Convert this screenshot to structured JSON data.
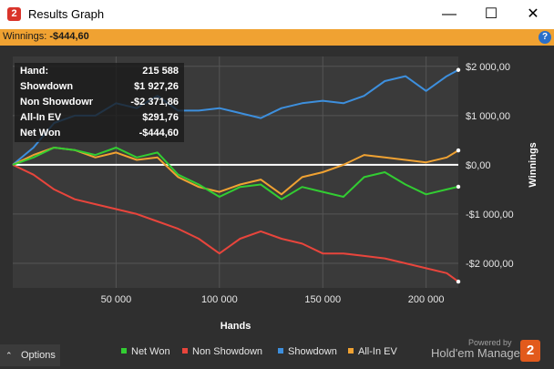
{
  "window": {
    "title": "Results Graph",
    "minimize_glyph": "—",
    "maximize_glyph": "☐",
    "close_glyph": "✕"
  },
  "winnings_bar": {
    "label": "Winnings:",
    "value": "-$444,60",
    "help_glyph": "?"
  },
  "info_box": [
    {
      "label": "Hand:",
      "value": "215 588"
    },
    {
      "label": "Showdown",
      "value": "$1 927,26"
    },
    {
      "label": "Non Showdown",
      "value": "-$2 371,86"
    },
    {
      "label": "All-In EV",
      "value": "$291,76"
    },
    {
      "label": "Net Won",
      "value": "-$444,60"
    }
  ],
  "options_button": {
    "chevron": "⌃",
    "label": "Options"
  },
  "powered_by": "Powered by",
  "brand": {
    "name": "Hold'em Manager",
    "logo_text": "2"
  },
  "colors": {
    "plot_background": "#3a3a3a",
    "grid": "#555555",
    "zero_line": "#ffffff",
    "net_won": "#32cd32",
    "non_showdown": "#e8453c",
    "showdown": "#3d8fdd",
    "all_in_ev": "#f0a232"
  },
  "chart_data": {
    "type": "line",
    "xlabel": "Hands",
    "ylabel": "Winnings",
    "xlim": [
      0,
      215588
    ],
    "ylim": [
      -2500,
      2200
    ],
    "x_ticks": [
      50000,
      100000,
      150000,
      200000
    ],
    "x_tick_labels": [
      "50 000",
      "100 000",
      "150 000",
      "200 000"
    ],
    "y_ticks": [
      2000,
      1000,
      0,
      -1000,
      -2000
    ],
    "y_tick_labels": [
      "$2 000,00",
      "$1 000,00",
      "$0,00",
      "-$1 000,00",
      "-$2 000,00"
    ],
    "grid": true,
    "legend_position": "bottom",
    "x": [
      0,
      10000,
      20000,
      30000,
      40000,
      50000,
      60000,
      70000,
      80000,
      90000,
      100000,
      110000,
      120000,
      130000,
      140000,
      150000,
      160000,
      170000,
      180000,
      190000,
      200000,
      210000,
      215588
    ],
    "series": [
      {
        "name": "Net Won",
        "color_key": "net_won",
        "values": [
          0,
          150,
          350,
          300,
          200,
          350,
          150,
          250,
          -200,
          -400,
          -650,
          -450,
          -400,
          -700,
          -450,
          -550,
          -650,
          -250,
          -150,
          -400,
          -600,
          -500,
          -445
        ]
      },
      {
        "name": "Non Showdown",
        "color_key": "non_showdown",
        "values": [
          0,
          -200,
          -500,
          -700,
          -800,
          -900,
          -1000,
          -1150,
          -1300,
          -1500,
          -1800,
          -1500,
          -1350,
          -1500,
          -1600,
          -1800,
          -1800,
          -1850,
          -1900,
          -2000,
          -2100,
          -2200,
          -2372
        ]
      },
      {
        "name": "Showdown",
        "color_key": "showdown",
        "values": [
          0,
          350,
          850,
          1000,
          1000,
          1250,
          1150,
          1400,
          1100,
          1100,
          1150,
          1050,
          950,
          1150,
          1250,
          1300,
          1250,
          1400,
          1700,
          1800,
          1500,
          1800,
          1927
        ]
      },
      {
        "name": "All-In EV",
        "color_key": "all_in_ev",
        "values": [
          0,
          200,
          350,
          300,
          150,
          250,
          100,
          150,
          -250,
          -450,
          -550,
          -400,
          -300,
          -600,
          -250,
          -150,
          0,
          200,
          150,
          100,
          50,
          150,
          292
        ]
      }
    ]
  }
}
